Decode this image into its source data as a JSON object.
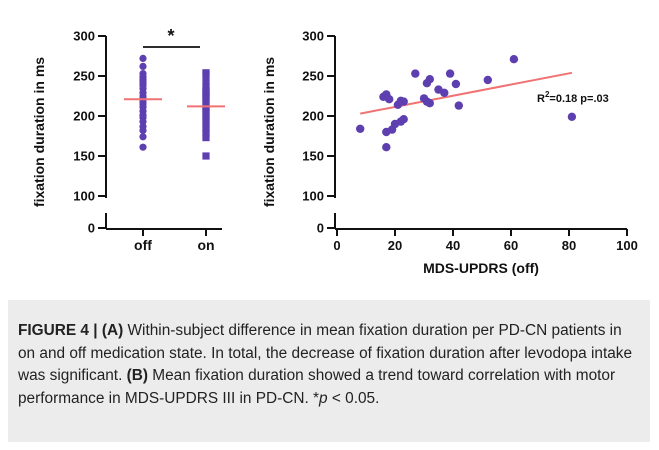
{
  "chart_data": [
    {
      "type": "scatter",
      "panel": "A",
      "title": "",
      "xlabel": "",
      "ylabel": "fixation duration in ms",
      "categories": [
        "off",
        "on"
      ],
      "yticks": [
        0,
        100,
        150,
        200,
        250,
        300
      ],
      "ylim": [
        0,
        300
      ],
      "axis_break": true,
      "significance": "*",
      "colors": {
        "points": "#5d3fb0",
        "median": "#f07272"
      },
      "series": [
        {
          "category": "off",
          "marker": "circle",
          "median": 221,
          "values": [
            272,
            262,
            253,
            249,
            246,
            244,
            241,
            238,
            234,
            229,
            225,
            222,
            218,
            215,
            211,
            206,
            201,
            198,
            193,
            187,
            182,
            174,
            161
          ]
        },
        {
          "category": "on",
          "marker": "square",
          "median": 212,
          "values": [
            254,
            252,
            243,
            236,
            232,
            230,
            228,
            225,
            222,
            219,
            214,
            211,
            209,
            205,
            201,
            198,
            194,
            189,
            184,
            179,
            173,
            150
          ]
        }
      ]
    },
    {
      "type": "scatter",
      "panel": "B",
      "title": "",
      "xlabel": "MDS-UPDRS (off)",
      "ylabel": "fixation duration in ms",
      "xticks": [
        0,
        20,
        40,
        60,
        80,
        100
      ],
      "yticks": [
        0,
        100,
        150,
        200,
        250,
        300
      ],
      "xlim": [
        0,
        100
      ],
      "ylim": [
        0,
        300
      ],
      "axis_break": true,
      "annotation": {
        "r2_prefix": "R",
        "r2_sup": "2",
        "r2_rest": "=0.18 p=.03"
      },
      "colors": {
        "points": "#5d3fb0",
        "fit": "#f07272"
      },
      "fit_line": {
        "x": [
          8,
          81
        ],
        "y": [
          203,
          254
        ]
      },
      "points": [
        {
          "x": 8,
          "y": 184
        },
        {
          "x": 16,
          "y": 224
        },
        {
          "x": 17,
          "y": 227
        },
        {
          "x": 17,
          "y": 161
        },
        {
          "x": 17,
          "y": 180
        },
        {
          "x": 18,
          "y": 221
        },
        {
          "x": 19,
          "y": 183
        },
        {
          "x": 20,
          "y": 190
        },
        {
          "x": 21,
          "y": 214
        },
        {
          "x": 22,
          "y": 219
        },
        {
          "x": 22,
          "y": 193
        },
        {
          "x": 23,
          "y": 196
        },
        {
          "x": 23,
          "y": 218
        },
        {
          "x": 27,
          "y": 253
        },
        {
          "x": 30,
          "y": 222
        },
        {
          "x": 31,
          "y": 241
        },
        {
          "x": 31,
          "y": 218
        },
        {
          "x": 32,
          "y": 246
        },
        {
          "x": 32,
          "y": 216
        },
        {
          "x": 35,
          "y": 233
        },
        {
          "x": 37,
          "y": 229
        },
        {
          "x": 39,
          "y": 253
        },
        {
          "x": 41,
          "y": 240
        },
        {
          "x": 42,
          "y": 213
        },
        {
          "x": 52,
          "y": 245
        },
        {
          "x": 61,
          "y": 271
        },
        {
          "x": 81,
          "y": 199
        }
      ]
    }
  ],
  "caption": {
    "lead": "FIGURE 4 | ",
    "part_a_label": "(A)",
    "part_a_text": " Within-subject difference in mean fixation duration per PD-CN patients in on and off medication state. In total, the decrease of fixation duration after levodopa intake was significant. ",
    "part_b_label": "(B)",
    "part_b_text": " Mean fixation duration showed a trend toward correlation with motor performance in MDS-UPDRS III in PD-CN. *",
    "p_symbol": "p",
    "p_rest": " < 0.05."
  }
}
